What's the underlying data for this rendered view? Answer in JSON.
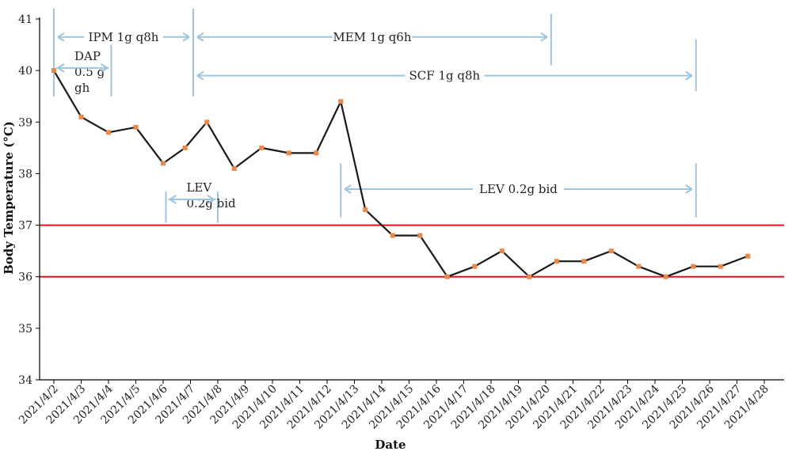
{
  "chart_data": {
    "type": "line",
    "xlabel": "Date",
    "ylabel": "Body Temperature (°C)",
    "ylim": [
      34,
      41
    ],
    "yticks": [
      "34",
      "35",
      "36",
      "37",
      "38",
      "39",
      "40",
      "41"
    ],
    "categories": [
      "2021/4/2",
      "2021/4/3",
      "2021/4/4",
      "2021/4/5",
      "2021/4/6",
      "2021/4/7",
      "2021/4/8",
      "2021/4/9",
      "2021/4/10",
      "2021/4/11",
      "2021/4/12",
      "2021/4/13",
      "2021/4/14",
      "2021/4/15",
      "2021/4/16",
      "2021/4/17",
      "2021/4/18",
      "2021/4/19",
      "2021/4/20",
      "2021/4/21",
      "2021/4/22",
      "2021/4/23",
      "2021/4/24",
      "2021/4/25",
      "2021/4/26",
      "2021/4/27",
      "2021/4/28"
    ],
    "points": [
      {
        "x": 0,
        "y": 40.0
      },
      {
        "x": 1,
        "y": 39.1
      },
      {
        "x": 2,
        "y": 38.8
      },
      {
        "x": 3,
        "y": 38.9
      },
      {
        "x": 4,
        "y": 38.2
      },
      {
        "x": 4.8,
        "y": 38.5
      },
      {
        "x": 5.6,
        "y": 39.0
      },
      {
        "x": 6.6,
        "y": 38.1
      },
      {
        "x": 7.6,
        "y": 38.5
      },
      {
        "x": 8.6,
        "y": 38.4
      },
      {
        "x": 9.6,
        "y": 38.4
      },
      {
        "x": 10.5,
        "y": 39.4
      },
      {
        "x": 11.4,
        "y": 37.3
      },
      {
        "x": 12.4,
        "y": 36.8
      },
      {
        "x": 13.4,
        "y": 36.8
      },
      {
        "x": 14.4,
        "y": 36.0
      },
      {
        "x": 15.4,
        "y": 36.2
      },
      {
        "x": 16.4,
        "y": 36.5
      },
      {
        "x": 17.4,
        "y": 36.0
      },
      {
        "x": 18.4,
        "y": 36.3
      },
      {
        "x": 19.4,
        "y": 36.3
      },
      {
        "x": 20.4,
        "y": 36.5
      },
      {
        "x": 21.4,
        "y": 36.2
      },
      {
        "x": 22.4,
        "y": 36.0
      },
      {
        "x": 23.4,
        "y": 36.2
      },
      {
        "x": 24.4,
        "y": 36.2
      },
      {
        "x": 25.4,
        "y": 36.4
      }
    ],
    "reference_lines": [
      37,
      36
    ],
    "line_color": "#1a1a1a",
    "marker_color": "#e8894a",
    "reference_color": "#e0141e",
    "annotation_color": "#9cc5df",
    "annotations": [
      {
        "text": "IPM 1g q8h",
        "x0": 0,
        "x1": 5.1,
        "y": 40.65,
        "bars": [
          0,
          5.1
        ],
        "bar_range": [
          39.5,
          41.2
        ]
      },
      {
        "text": "MEM 1g q6h",
        "x0": 5.1,
        "x1": 18.2,
        "y": 40.65,
        "bars": [
          18.2
        ],
        "bar_range": [
          40.1,
          41.1
        ]
      },
      {
        "text": "SCF 1g q8h",
        "x0": 5.1,
        "x1": 23.5,
        "y": 39.9,
        "bars": [
          23.5
        ],
        "bar_range": [
          39.6,
          40.6
        ]
      },
      {
        "text_lines": [
          "DAP",
          "0.5 g",
          "gh"
        ],
        "x0": 0,
        "x1": 2.1,
        "y": 40.05,
        "bars": [
          2.1
        ],
        "bar_range": [
          39.5,
          40.5
        ]
      },
      {
        "text_lines": [
          "LEV",
          "0.2g bid"
        ],
        "x0": 4.1,
        "x1": 6.0,
        "y": 37.5,
        "bars": [
          4.1,
          6.0
        ],
        "bar_range": [
          37.05,
          37.65
        ]
      },
      {
        "text": "LEV 0.2g bid",
        "x0": 10.5,
        "x1": 23.5,
        "y": 37.7,
        "bars": [
          10.5,
          23.5
        ],
        "bar_range": [
          37.15,
          38.2
        ]
      }
    ]
  }
}
